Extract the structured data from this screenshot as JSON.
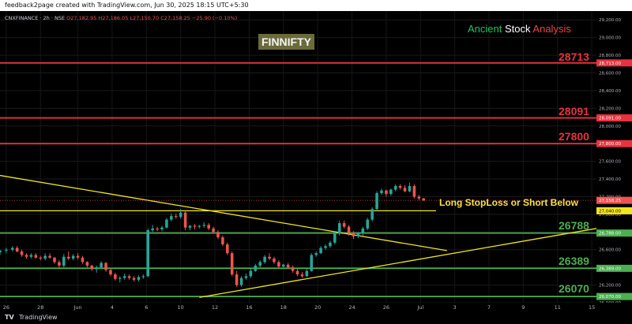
{
  "header": {
    "attribution": "feedback2page created with TradingView.com, Jun 30, 2025 18:15 UTC+5:30"
  },
  "symbol_bar": {
    "symbol": "CNXFINANCE · 2h · NSE",
    "ohlc": "O27,182.95 H27,186.05 L27,150.70 C27,158.25 −25.90 (−0.10%)"
  },
  "overlays": {
    "title_box": "FINNIFTY",
    "brand": {
      "w1": "Ancient",
      "w2": "Stock",
      "w3": "Analysis"
    },
    "stoploss_note": "Long StopLoss or Short Below"
  },
  "footer": {
    "logo": "TV",
    "brand": "TradingView"
  },
  "colors": {
    "up": "#26a69a",
    "down": "#ef5350",
    "resistance": "#e8323f",
    "support": "#4caf50",
    "trend": "#f5e61a",
    "background": "#000000"
  },
  "chart_data": {
    "type": "candlestick",
    "y_axis_range": [
      26000,
      29300
    ],
    "y_ticks": [
      "29,200.00",
      "29,000.00",
      "28,800.00",
      "28,600.00",
      "28,400.00",
      "28,200.00",
      "28,000.00",
      "27,800.00",
      "27,600.00",
      "27,400.00",
      "27,200.00",
      "27,000.00",
      "26,800.00",
      "26,600.00",
      "26,400.00",
      "26,200.00",
      "26,000.00"
    ],
    "y_tick_values": [
      29200,
      29000,
      28800,
      28600,
      28400,
      28200,
      28000,
      27800,
      27600,
      27400,
      27200,
      27000,
      26800,
      26600,
      26400,
      26200,
      26000
    ],
    "x_ticks": [
      "26",
      "28",
      "Jun",
      "4",
      "6",
      "10",
      "12",
      "16",
      "18",
      "20",
      "24",
      "26",
      "Jul",
      "3",
      "7",
      "9",
      "11",
      "15"
    ],
    "x_tick_positions": [
      4,
      26,
      50,
      72,
      94,
      116,
      138,
      160,
      182,
      204,
      226,
      248,
      270,
      292,
      314,
      336,
      358,
      380
    ],
    "x_range": [
      0,
      383
    ],
    "price_tags": [
      "28,713.00",
      "28,091.00",
      "27,800.00",
      "27,158.25",
      "27,040.00",
      "26,788.00",
      "26,389.00",
      "26,070.00"
    ],
    "price_tag_values": [
      28713,
      28091,
      27800,
      27158.25,
      27040,
      26788,
      26389,
      26070
    ],
    "price_tag_kinds": [
      "resistance",
      "resistance",
      "resistance",
      "price",
      "stoploss",
      "support",
      "support",
      "support"
    ],
    "levels": [
      {
        "label": "28713",
        "value": 28713,
        "kind": "resistance"
      },
      {
        "label": "28091",
        "value": 28091,
        "kind": "resistance"
      },
      {
        "label": "27800",
        "value": 27800,
        "kind": "resistance"
      },
      {
        "label": "27040",
        "value": 27040,
        "kind": "stoploss"
      },
      {
        "label": "26788",
        "value": 26788,
        "kind": "support"
      },
      {
        "label": "26389",
        "value": 26389,
        "kind": "support"
      },
      {
        "label": "26070",
        "value": 26070,
        "kind": "support"
      }
    ],
    "trendlines": [
      {
        "from": [
          0,
          27440
        ],
        "to": [
          287,
          26590
        ]
      },
      {
        "from": [
          128,
          26060
        ],
        "to": [
          383,
          26840
        ]
      }
    ],
    "current_price": 27158.25,
    "candles": [
      [
        0,
        26570,
        26600,
        26540,
        26590
      ],
      [
        4,
        26590,
        26620,
        26560,
        26600
      ],
      [
        8,
        26600,
        26640,
        26580,
        26620
      ],
      [
        11,
        26620,
        26640,
        26570,
        26580
      ],
      [
        14,
        26580,
        26600,
        26520,
        26540
      ],
      [
        17,
        26540,
        26560,
        26500,
        26520
      ],
      [
        20,
        26520,
        26560,
        26500,
        26540
      ],
      [
        23,
        26540,
        26560,
        26500,
        26510
      ],
      [
        26,
        26510,
        26530,
        26480,
        26500
      ],
      [
        29,
        26500,
        26560,
        26480,
        26530
      ],
      [
        32,
        26530,
        26560,
        26500,
        26510
      ],
      [
        35,
        26510,
        26520,
        26440,
        26460
      ],
      [
        38,
        26460,
        26480,
        26400,
        26420
      ],
      [
        41,
        26420,
        26550,
        26400,
        26520
      ],
      [
        44,
        26520,
        26580,
        26480,
        26500
      ],
      [
        47,
        26500,
        26550,
        26480,
        26530
      ],
      [
        50,
        26530,
        26560,
        26490,
        26510
      ],
      [
        53,
        26510,
        26530,
        26440,
        26460
      ],
      [
        56,
        26460,
        26470,
        26400,
        26420
      ],
      [
        59,
        26420,
        26430,
        26360,
        26380
      ],
      [
        62,
        26380,
        26420,
        26340,
        26400
      ],
      [
        65,
        26400,
        26470,
        26380,
        26450
      ],
      [
        68,
        26450,
        26460,
        26350,
        26370
      ],
      [
        71,
        26370,
        26390,
        26300,
        26320
      ],
      [
        74,
        26320,
        26340,
        26250,
        26270
      ],
      [
        77,
        26270,
        26300,
        26230,
        26280
      ],
      [
        80,
        26280,
        26330,
        26260,
        26300
      ],
      [
        83,
        26300,
        26320,
        26260,
        26280
      ],
      [
        86,
        26280,
        26300,
        26240,
        26260
      ],
      [
        89,
        26260,
        26310,
        26240,
        26290
      ],
      [
        92,
        26290,
        26320,
        26270,
        26300
      ],
      [
        95,
        26300,
        26840,
        26290,
        26820
      ],
      [
        98,
        26820,
        26880,
        26800,
        26840
      ],
      [
        101,
        26840,
        26860,
        26810,
        26830
      ],
      [
        104,
        26830,
        26870,
        26810,
        26850
      ],
      [
        107,
        26850,
        26960,
        26840,
        26940
      ],
      [
        110,
        26940,
        27010,
        26920,
        26980
      ],
      [
        113,
        26980,
        27010,
        26950,
        26970
      ],
      [
        116,
        26970,
        27060,
        26950,
        27020
      ],
      [
        119,
        27020,
        27040,
        26820,
        26850
      ],
      [
        122,
        26850,
        26880,
        26820,
        26870
      ],
      [
        125,
        26870,
        26890,
        26830,
        26860
      ],
      [
        128,
        26860,
        26880,
        26840,
        26870
      ],
      [
        131,
        26870,
        26910,
        26850,
        26880
      ],
      [
        134,
        26880,
        26900,
        26820,
        26840
      ],
      [
        137,
        26840,
        26860,
        26780,
        26800
      ],
      [
        140,
        26800,
        26820,
        26720,
        26740
      ],
      [
        143,
        26740,
        26760,
        26640,
        26660
      ],
      [
        146,
        26660,
        26680,
        26540,
        26560
      ],
      [
        149,
        26560,
        26580,
        26300,
        26320
      ],
      [
        152,
        26320,
        26360,
        26180,
        26200
      ],
      [
        155,
        26200,
        26300,
        26180,
        26280
      ],
      [
        158,
        26280,
        26330,
        26260,
        26300
      ],
      [
        161,
        26300,
        26380,
        26280,
        26360
      ],
      [
        164,
        26360,
        26440,
        26350,
        26420
      ],
      [
        167,
        26420,
        26480,
        26400,
        26460
      ],
      [
        170,
        26460,
        26540,
        26440,
        26520
      ],
      [
        173,
        26520,
        26560,
        26480,
        26500
      ],
      [
        176,
        26500,
        26520,
        26440,
        26460
      ],
      [
        179,
        26460,
        26480,
        26390,
        26410
      ],
      [
        182,
        26410,
        26440,
        26380,
        26430
      ],
      [
        185,
        26430,
        26450,
        26380,
        26400
      ],
      [
        188,
        26400,
        26420,
        26340,
        26360
      ],
      [
        191,
        26360,
        26380,
        26300,
        26320
      ],
      [
        194,
        26320,
        26350,
        26280,
        26300
      ],
      [
        197,
        26300,
        26380,
        26290,
        26360
      ],
      [
        200,
        26360,
        26560,
        26350,
        26540
      ],
      [
        203,
        26540,
        26580,
        26520,
        26560
      ],
      [
        206,
        26560,
        26640,
        26550,
        26620
      ],
      [
        209,
        26620,
        26660,
        26600,
        26640
      ],
      [
        212,
        26640,
        26700,
        26620,
        26680
      ],
      [
        215,
        26680,
        26800,
        26660,
        26780
      ],
      [
        218,
        26780,
        26930,
        26760,
        26900
      ],
      [
        221,
        26900,
        26930,
        26840,
        26860
      ],
      [
        224,
        26860,
        26880,
        26760,
        26790
      ],
      [
        227,
        26790,
        26810,
        26720,
        26750
      ],
      [
        230,
        26750,
        26800,
        26730,
        26780
      ],
      [
        233,
        26780,
        26860,
        26760,
        26840
      ],
      [
        236,
        26840,
        26960,
        26820,
        26940
      ],
      [
        239,
        26940,
        27080,
        26920,
        27060
      ],
      [
        242,
        27060,
        27260,
        27040,
        27240
      ],
      [
        245,
        27240,
        27290,
        27220,
        27270
      ],
      [
        248,
        27270,
        27280,
        27200,
        27230
      ],
      [
        251,
        27230,
        27290,
        27210,
        27280
      ],
      [
        254,
        27280,
        27340,
        27260,
        27320
      ],
      [
        257,
        27320,
        27340,
        27280,
        27300
      ],
      [
        260,
        27300,
        27330,
        27250,
        27260
      ],
      [
        263,
        27260,
        27360,
        27250,
        27320
      ],
      [
        266,
        27320,
        27340,
        27180,
        27200
      ],
      [
        269,
        27200,
        27220,
        27160,
        27180
      ],
      [
        272,
        27180,
        27186,
        27150,
        27158
      ]
    ]
  }
}
